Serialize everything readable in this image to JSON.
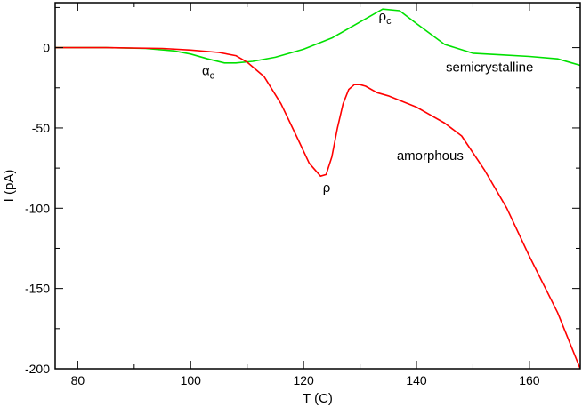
{
  "chart_data": {
    "type": "line",
    "title": "",
    "xlabel": "T (C)",
    "ylabel": "I (pA)",
    "xlim": [
      76,
      169
    ],
    "ylim": [
      -200,
      28
    ],
    "x_ticks": [
      80,
      100,
      120,
      140,
      160
    ],
    "x_tick_labels": [
      "80",
      "100",
      "120",
      "140",
      "160"
    ],
    "y_ticks": [
      0,
      -50,
      -100,
      -150,
      -200
    ],
    "y_tick_labels": [
      "0",
      "-50",
      "-100",
      "-150",
      "-200"
    ],
    "grid": false,
    "series": [
      {
        "color": "#00e000",
        "x": [
          76,
          85,
          92,
          97,
          100,
          103,
          106,
          108,
          111,
          115,
          120,
          125,
          130,
          134,
          137,
          140,
          145,
          150,
          155,
          160,
          165,
          169
        ],
        "y": [
          0,
          0,
          -0.5,
          -2,
          -4,
          -7,
          -9.5,
          -9.5,
          -8.5,
          -6,
          -1,
          6,
          16,
          24,
          23,
          15,
          2,
          -3.5,
          -4.5,
          -5.5,
          -7,
          -11
        ]
      },
      {
        "color": "#ff0000",
        "x": [
          76,
          85,
          95,
          100,
          105,
          108,
          110,
          113,
          116,
          119,
          121,
          123,
          124,
          125,
          126,
          127,
          128,
          129,
          130,
          131,
          133,
          135,
          140,
          145,
          148,
          152,
          156,
          160,
          165,
          169
        ],
        "y": [
          0,
          0,
          -0.5,
          -1.5,
          -3,
          -5,
          -9,
          -18,
          -35,
          -57,
          -72,
          -80,
          -79,
          -68,
          -50,
          -35,
          -26,
          -23,
          -23,
          -24,
          -28,
          -30,
          -37,
          -47,
          -55,
          -76,
          -100,
          -130,
          -165,
          -200
        ]
      }
    ],
    "annotations": [
      {
        "text": "α",
        "sub": "c",
        "x": 102,
        "y": -17
      },
      {
        "text": "ρ",
        "sub": "c",
        "x": 133.3,
        "y": 17
      },
      {
        "text": "semicrystalline",
        "x": 145.2,
        "y": -15
      },
      {
        "text": "amorphous",
        "x": 136.5,
        "y": -70
      },
      {
        "text": "ρ",
        "sub": "",
        "x": 123.4,
        "y": -90
      }
    ]
  }
}
